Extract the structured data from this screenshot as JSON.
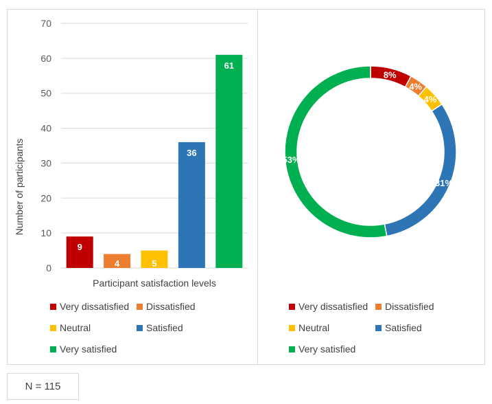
{
  "chart_data": [
    {
      "type": "bar",
      "categories": [
        "Very dissatisfied",
        "Dissatisfied",
        "Neutral",
        "Satisfied",
        "Very satisfied"
      ],
      "values": [
        9,
        4,
        5,
        36,
        61
      ],
      "colors": [
        "#c00000",
        "#ed7d31",
        "#ffc000",
        "#2e75b6",
        "#00b050"
      ],
      "xlabel": "Participant satisfaction levels",
      "ylabel": "Number of participants",
      "ylim": [
        0,
        70
      ],
      "yticks": [
        0,
        10,
        20,
        30,
        40,
        50,
        60,
        70
      ],
      "grid": true,
      "legend": "bottom"
    },
    {
      "type": "pie",
      "style": "donut",
      "categories": [
        "Very dissatisfied",
        "Dissatisfied",
        "Neutral",
        "Satisfied",
        "Very satisfied"
      ],
      "values": [
        9,
        4,
        5,
        36,
        61
      ],
      "labels": [
        "8%",
        "4%",
        "4%",
        "31%",
        "53%"
      ],
      "colors": [
        "#c00000",
        "#ed7d31",
        "#ffc000",
        "#2e75b6",
        "#00b050"
      ],
      "legend": "bottom"
    }
  ],
  "footnote": "N = 115"
}
